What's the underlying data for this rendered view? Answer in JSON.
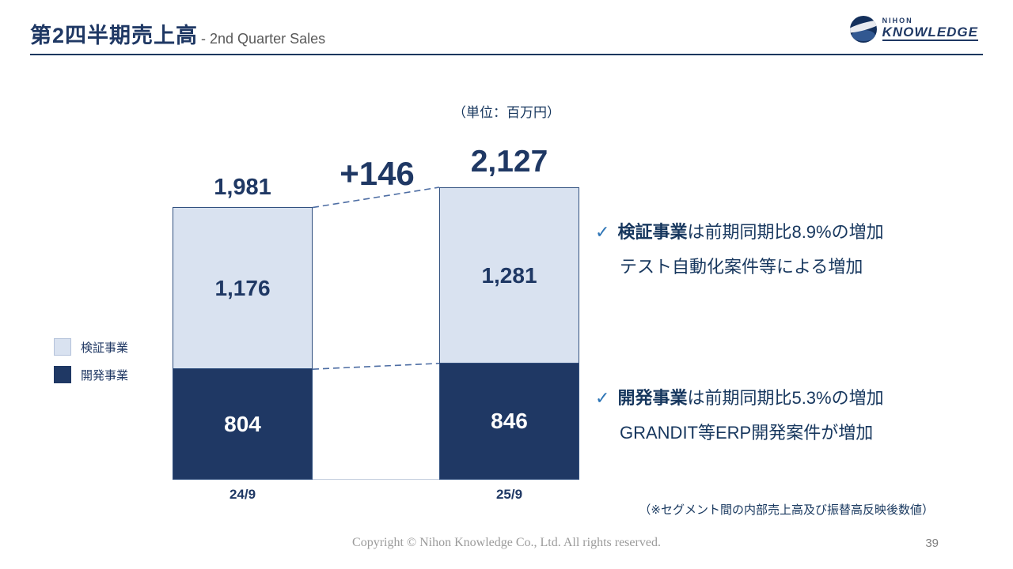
{
  "header": {
    "title_jp": "第2四半期売上高",
    "title_en": "- 2nd Quarter Sales"
  },
  "logo": {
    "line1": "NIHON",
    "line2": "KNOWLEDGE"
  },
  "unit_label": "（単位：百万円）",
  "chart_data": {
    "type": "bar",
    "stacked": true,
    "categories": [
      "24/9",
      "25/9"
    ],
    "series": [
      {
        "name": "検証事業",
        "color": "#D9E2F0",
        "values": [
          1176,
          1281
        ]
      },
      {
        "name": "開発事業",
        "color": "#1F3864",
        "values": [
          804,
          846
        ]
      }
    ],
    "totals": [
      "1,981",
      "2,127"
    ],
    "value_labels": [
      [
        "1,176",
        "804"
      ],
      [
        "1,281",
        "846"
      ]
    ],
    "delta_label": "+146",
    "ylim": [
      0,
      2127
    ],
    "grid": false,
    "legend_position": "left"
  },
  "commentary": [
    {
      "check": "✓",
      "bold": "検証事業",
      "rest": "は前期同期比8.9%の増加",
      "line2": "テスト自動化案件等による増加"
    },
    {
      "check": "✓",
      "bold": "開発事業",
      "rest": "は前期同期比5.3%の増加",
      "line2": "GRANDIT等ERP開発案件が増加"
    }
  ],
  "footnote": "（※セグメント間の内部売上高及び振替高反映後数値）",
  "footer": {
    "copyright": "Copyright © Nihon Knowledge Co., Ltd. All rights reserved.",
    "page_number": "39"
  },
  "colors": {
    "accent_navy": "#1F3864",
    "light_blue": "#D9E2F0",
    "check_blue": "#2E75B6"
  }
}
